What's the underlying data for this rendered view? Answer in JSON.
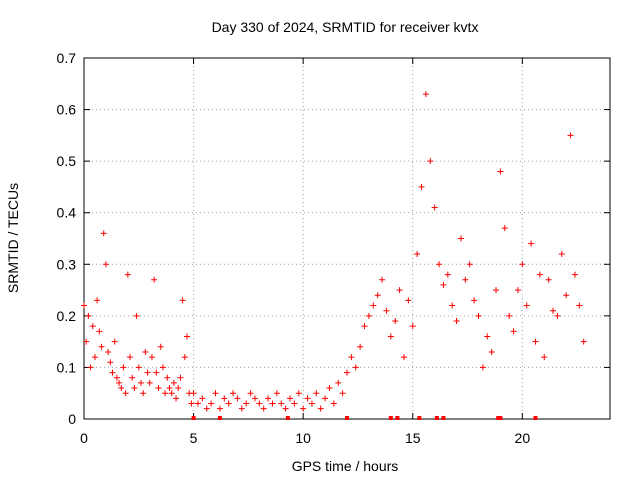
{
  "chart_data": {
    "type": "scatter",
    "title": "Day 330 of 2024, SRMTID for receiver kvtx",
    "xlabel": "GPS time / hours",
    "ylabel": "SRMTID / TECUs",
    "xlim": [
      0,
      24
    ],
    "ylim": [
      0,
      0.7
    ],
    "xticks": [
      0,
      5,
      10,
      15,
      20
    ],
    "xtick_labels": [
      "0",
      "5",
      "10",
      "15",
      "20"
    ],
    "yticks": [
      0,
      0.1,
      0.2,
      0.3,
      0.4,
      0.5,
      0.6,
      0.7
    ],
    "ytick_labels": [
      "0",
      "0.1",
      "0.2",
      "0.3",
      "0.4",
      "0.5",
      "0.6",
      "0.7"
    ],
    "grid": true,
    "marker": "plus",
    "series": [
      {
        "name": "SRMTID",
        "color": "#ff0000",
        "x": [
          0.0,
          0.1,
          0.2,
          0.3,
          0.4,
          0.5,
          0.6,
          0.7,
          0.8,
          0.9,
          1.0,
          1.1,
          1.2,
          1.3,
          1.4,
          1.5,
          1.6,
          1.7,
          1.8,
          1.9,
          2.0,
          2.1,
          2.2,
          2.3,
          2.4,
          2.5,
          2.6,
          2.7,
          2.8,
          2.9,
          3.0,
          3.1,
          3.2,
          3.3,
          3.4,
          3.5,
          3.6,
          3.7,
          3.8,
          3.9,
          4.0,
          4.1,
          4.2,
          4.3,
          4.4,
          4.5,
          4.6,
          4.7,
          4.8,
          4.9,
          5.0,
          5.2,
          5.4,
          5.6,
          5.8,
          6.0,
          6.2,
          6.4,
          6.6,
          6.8,
          7.0,
          7.2,
          7.4,
          7.6,
          7.8,
          8.0,
          8.2,
          8.4,
          8.6,
          8.8,
          9.0,
          9.2,
          9.4,
          9.6,
          9.8,
          10.0,
          10.2,
          10.4,
          10.6,
          10.8,
          11.0,
          11.2,
          11.4,
          11.6,
          11.8,
          12.0,
          12.2,
          12.4,
          12.6,
          12.8,
          13.0,
          13.2,
          13.4,
          13.6,
          13.8,
          14.0,
          14.2,
          14.4,
          14.6,
          14.8,
          15.0,
          15.2,
          15.4,
          15.6,
          15.8,
          16.0,
          16.2,
          16.4,
          16.6,
          16.8,
          17.0,
          17.2,
          17.4,
          17.6,
          17.8,
          18.0,
          18.2,
          18.4,
          18.6,
          18.8,
          19.0,
          19.2,
          19.4,
          19.6,
          19.8,
          20.0,
          20.2,
          20.4,
          20.6,
          20.8,
          21.0,
          21.2,
          21.4,
          21.6,
          21.8,
          22.0,
          22.2,
          22.4,
          22.6,
          22.8
        ],
        "y": [
          0.22,
          0.15,
          0.2,
          0.1,
          0.18,
          0.12,
          0.23,
          0.17,
          0.14,
          0.36,
          0.3,
          0.13,
          0.11,
          0.09,
          0.15,
          0.08,
          0.07,
          0.06,
          0.1,
          0.05,
          0.28,
          0.12,
          0.08,
          0.06,
          0.2,
          0.1,
          0.07,
          0.05,
          0.13,
          0.09,
          0.07,
          0.12,
          0.27,
          0.09,
          0.06,
          0.14,
          0.1,
          0.05,
          0.08,
          0.06,
          0.05,
          0.07,
          0.04,
          0.06,
          0.08,
          0.23,
          0.12,
          0.16,
          0.05,
          0.03,
          0.05,
          0.03,
          0.04,
          0.02,
          0.03,
          0.05,
          0.02,
          0.04,
          0.03,
          0.05,
          0.04,
          0.02,
          0.03,
          0.05,
          0.04,
          0.03,
          0.02,
          0.04,
          0.03,
          0.05,
          0.03,
          0.02,
          0.04,
          0.03,
          0.05,
          0.02,
          0.04,
          0.03,
          0.05,
          0.02,
          0.04,
          0.06,
          0.03,
          0.07,
          0.05,
          0.09,
          0.12,
          0.1,
          0.14,
          0.18,
          0.2,
          0.22,
          0.24,
          0.27,
          0.21,
          0.16,
          0.19,
          0.25,
          0.12,
          0.23,
          0.18,
          0.32,
          0.45,
          0.63,
          0.5,
          0.41,
          0.3,
          0.26,
          0.28,
          0.22,
          0.19,
          0.35,
          0.27,
          0.3,
          0.23,
          0.2,
          0.1,
          0.16,
          0.13,
          0.25,
          0.48,
          0.37,
          0.2,
          0.17,
          0.25,
          0.3,
          0.22,
          0.34,
          0.15,
          0.28,
          0.12,
          0.27,
          0.21,
          0.2,
          0.32,
          0.24,
          0.55,
          0.28,
          0.22,
          0.15
        ]
      }
    ],
    "zero_markers_x": [
      5.0,
      6.2,
      9.3,
      12.0,
      14.0,
      14.3,
      15.3,
      16.1,
      16.4,
      18.9,
      19.0,
      20.6
    ]
  }
}
